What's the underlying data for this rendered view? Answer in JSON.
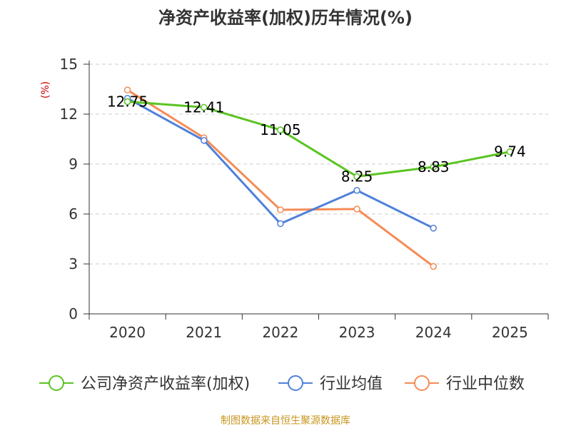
{
  "chart_data": {
    "type": "line",
    "title": "净资产收益率(加权)历年情况(%)",
    "ylabel": "(%)",
    "xlabel": "",
    "categories": [
      "2020",
      "2021",
      "2022",
      "2023",
      "2024",
      "2025"
    ],
    "yticks": [
      "0",
      "3",
      "6",
      "9",
      "12",
      "15"
    ],
    "ylim": [
      0,
      15
    ],
    "grid": true,
    "legend_position": "bottom",
    "series": [
      {
        "name": "公司净资产收益率(加权)",
        "color": "#5ac421",
        "values": [
          12.75,
          12.41,
          11.05,
          8.25,
          8.83,
          9.74
        ],
        "labels": [
          "12.75",
          "12.41",
          "11.05",
          "8.25",
          "8.83",
          "9.74"
        ]
      },
      {
        "name": "行业均值",
        "color": "#4f81d9",
        "values": [
          12.95,
          10.42,
          5.42,
          7.42,
          5.15,
          null
        ]
      },
      {
        "name": "行业中位数",
        "color": "#f58c57",
        "values": [
          13.45,
          10.58,
          6.25,
          6.3,
          2.85,
          null
        ]
      }
    ],
    "source": "制图数据来自恒生聚源数据库"
  },
  "colors": {
    "axis": "#333333",
    "grid": "#cccccc",
    "unit": "#cc0000"
  }
}
